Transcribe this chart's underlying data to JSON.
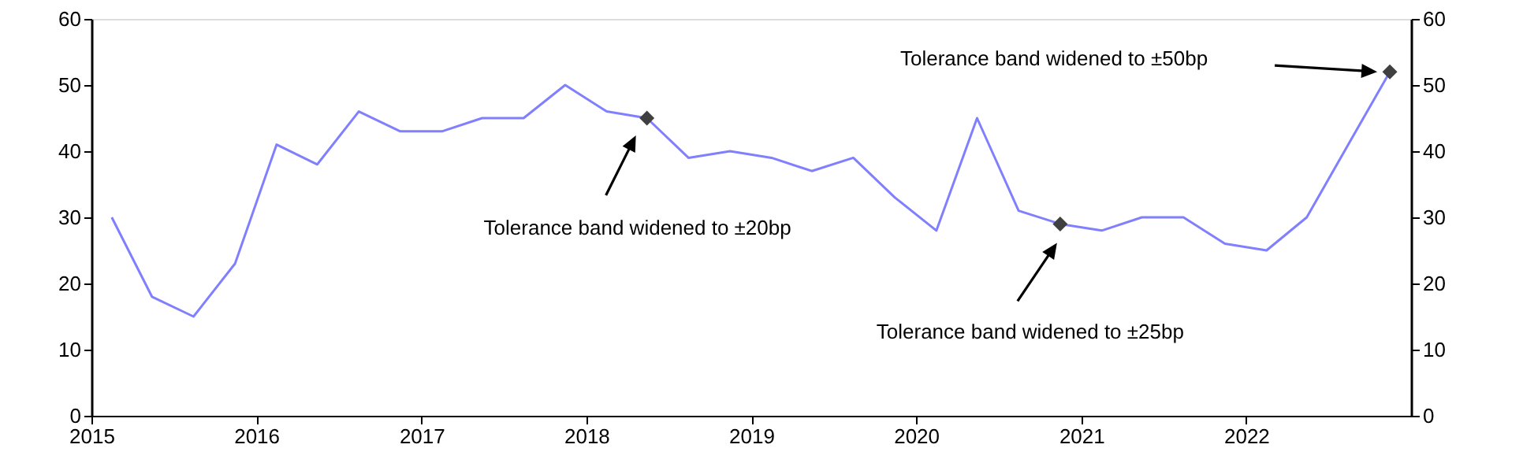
{
  "chart_data": {
    "type": "line",
    "x": [
      "2015-02-15",
      "2015-05-15",
      "2015-08-15",
      "2015-11-15",
      "2016-02-15",
      "2016-05-15",
      "2016-08-15",
      "2016-11-15",
      "2017-02-15",
      "2017-05-15",
      "2017-08-15",
      "2017-11-15",
      "2018-02-15",
      "2018-05-15",
      "2018-08-15",
      "2018-11-15",
      "2019-02-15",
      "2019-05-15",
      "2019-08-15",
      "2019-11-15",
      "2020-02-15",
      "2020-05-15",
      "2020-08-15",
      "2020-11-15",
      "2021-02-15",
      "2021-05-15",
      "2021-08-15",
      "2021-11-15",
      "2022-02-15",
      "2022-05-15",
      "2022-08-15",
      "2022-11-15"
    ],
    "series": [
      {
        "color": "#8080ff",
        "marker": "none",
        "values": [
          30,
          18,
          15,
          23,
          41,
          38,
          46,
          43,
          43,
          45,
          45,
          50,
          46,
          45,
          39,
          40,
          39,
          37,
          39,
          33,
          28,
          45,
          31,
          29,
          28,
          30,
          30,
          26,
          25,
          30,
          41,
          52
        ]
      },
      {
        "type": "scatter",
        "color": "#404040",
        "marker": "diamond",
        "x": [
          "2018-05-15",
          "2020-11-15",
          "2022-11-15"
        ],
        "values": [
          45,
          29,
          52
        ]
      }
    ],
    "annotations": [
      "Tolerance band widened to ±20bp",
      "Tolerance band widened to ±25bp",
      "Tolerance band widened to ±50bp"
    ],
    "xlim": [
      "2015",
      "2023"
    ],
    "xticks": [
      "2015",
      "2016",
      "2017",
      "2018",
      "2019",
      "2020",
      "2021",
      "2022"
    ],
    "ylim": [
      0,
      60
    ],
    "yticks": [
      0,
      10,
      20,
      30,
      40,
      50,
      60
    ],
    "y2lim": [
      0,
      60
    ],
    "y2ticks": [
      0,
      10,
      20,
      30,
      40,
      50,
      60
    ],
    "grid": false
  }
}
